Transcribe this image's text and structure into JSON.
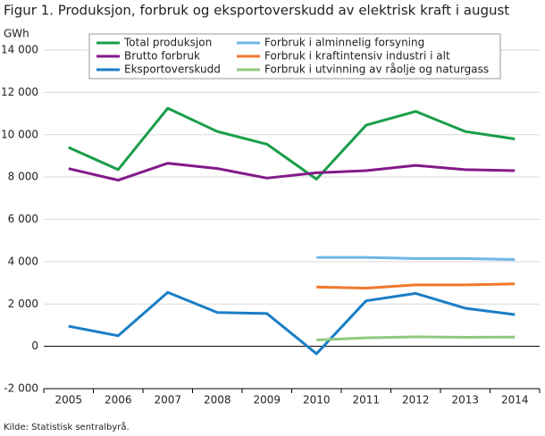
{
  "chart_data": {
    "type": "line",
    "title": "Figur 1. Produksjon, forbruk og eksportoverskudd av elektrisk kraft i august",
    "y_label": "GWh",
    "source": "Kilde: Statistisk sentralbyrå.",
    "categories": [
      "2005",
      "2006",
      "2007",
      "2008",
      "2009",
      "2010",
      "2011",
      "2012",
      "2013",
      "2014"
    ],
    "series": [
      {
        "name": "Total produksjon",
        "color": "#1a9d49",
        "values": [
          9400,
          8350,
          11250,
          10150,
          9550,
          7900,
          10450,
          11100,
          10150,
          9800
        ]
      },
      {
        "name": "Brutto forbruk",
        "color": "#831a8a",
        "values": [
          8400,
          7850,
          8650,
          8400,
          7950,
          8200,
          8300,
          8550,
          8350,
          8300
        ]
      },
      {
        "name": "Eksportoverskudd",
        "color": "#1a7ec6",
        "values": [
          950,
          500,
          2550,
          1600,
          1550,
          -350,
          2150,
          2500,
          1800,
          1500
        ]
      },
      {
        "name": "Forbruk i alminnelig forsyning",
        "color": "#6cb8e6",
        "values": [
          null,
          null,
          null,
          null,
          null,
          4200,
          4200,
          4150,
          4150,
          4100
        ]
      },
      {
        "name": "Forbruk i kraftintensiv industri i alt",
        "color": "#f0782d",
        "values": [
          null,
          null,
          null,
          null,
          null,
          2800,
          2750,
          2900,
          2900,
          2950
        ]
      },
      {
        "name": "Forbruk i utvinning av råolje og naturgass",
        "color": "#90c97f",
        "values": [
          null,
          null,
          null,
          null,
          null,
          300,
          400,
          450,
          430,
          440
        ]
      }
    ],
    "ylim": [
      -2000,
      14000
    ],
    "yticks": [
      {
        "value": -2000,
        "label": "-2 000"
      },
      0,
      {
        "value": 2000,
        "label": "2 000"
      },
      {
        "value": 4000,
        "label": "4 000"
      },
      {
        "value": 6000,
        "label": "6 000"
      },
      {
        "value": 8000,
        "label": "8 000"
      },
      {
        "value": 10000,
        "label": "10 000"
      },
      {
        "value": 12000,
        "label": "12 000"
      },
      {
        "value": 14000,
        "label": "14 000"
      }
    ],
    "grid": true,
    "legend": "top"
  }
}
